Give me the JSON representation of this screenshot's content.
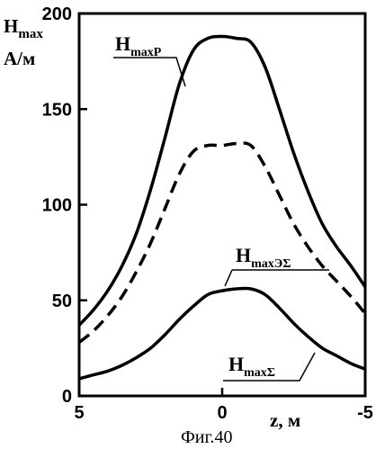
{
  "chart_data": {
    "type": "line",
    "ylabel_main": "H",
    "ylabel_sub": "max",
    "ylabel_unit": "А/м",
    "xlabel": "z, м",
    "caption": "Фиг.40",
    "xlim": [
      5,
      -5
    ],
    "ylim": [
      0,
      200
    ],
    "xticks": [
      "5",
      "0",
      "-5"
    ],
    "yticks": [
      "0",
      "50",
      "100",
      "150",
      "200"
    ],
    "grid": false,
    "series": [
      {
        "name": "H_maxP",
        "label_main": "H",
        "label_sub": "maxP",
        "style": "solid",
        "x": [
          5,
          4.5,
          4,
          3.5,
          3,
          2.5,
          2,
          1.5,
          1,
          0.5,
          0,
          -0.5,
          -1,
          -1.5,
          -2,
          -2.5,
          -3,
          -3.5,
          -4,
          -4.5,
          -5
        ],
        "y": [
          37,
          45,
          55,
          68,
          85,
          108,
          135,
          163,
          181,
          187,
          188,
          187,
          185,
          172,
          150,
          127,
          107,
          90,
          78,
          68,
          57
        ]
      },
      {
        "name": "H_maxЭΣ",
        "label_main": "H",
        "label_sub": "maxЭΣ",
        "style": "dashed",
        "x": [
          5,
          4.5,
          4,
          3.5,
          3,
          2.5,
          2,
          1.5,
          1,
          0.5,
          0,
          -0.5,
          -1,
          -1.5,
          -2,
          -2.5,
          -3,
          -3.5,
          -4,
          -4.5,
          -5
        ],
        "y": [
          28,
          34,
          42,
          52,
          65,
          80,
          98,
          116,
          128,
          131,
          131,
          132,
          131,
          120,
          105,
          90,
          78,
          68,
          60,
          52,
          43
        ]
      },
      {
        "name": "H_maxΣ",
        "label_main": "H",
        "label_sub": "maxΣ",
        "style": "solid",
        "x": [
          5,
          4.5,
          4,
          3.5,
          3,
          2.5,
          2,
          1.5,
          1,
          0.5,
          0,
          -0.5,
          -1,
          -1.5,
          -2,
          -2.5,
          -3,
          -3.5,
          -4,
          -4.5,
          -5
        ],
        "y": [
          9,
          11,
          13,
          16,
          20,
          25,
          32,
          40,
          47,
          53,
          55,
          56,
          56,
          53,
          46,
          38,
          31,
          25,
          21,
          17,
          14
        ]
      }
    ]
  }
}
